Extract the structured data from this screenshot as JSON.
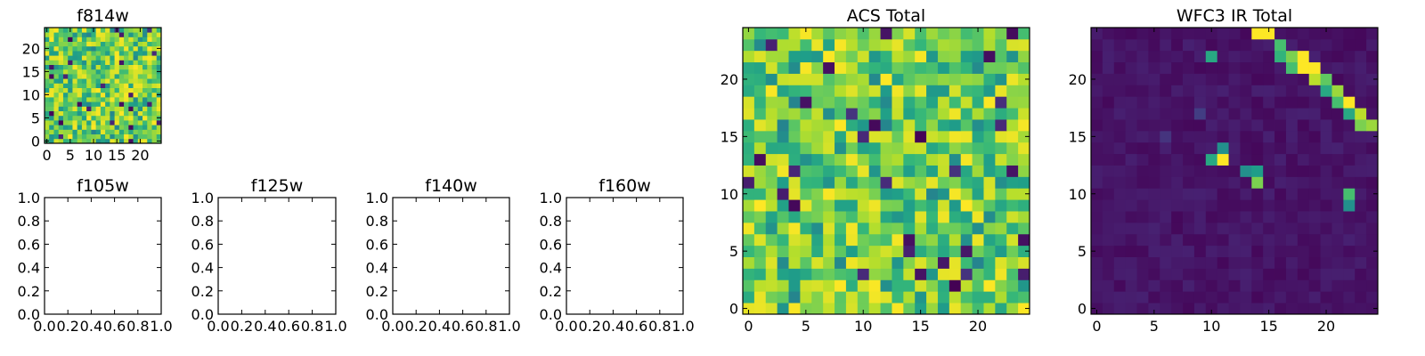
{
  "chart_data": [
    {
      "type": "heatmap",
      "title": "f814w",
      "xticks": [
        "0",
        "5",
        "10",
        "15",
        "20"
      ],
      "yticks": [
        "0",
        "5",
        "10",
        "15",
        "20"
      ],
      "grid_size": 25,
      "colormap": "viridis",
      "seed": 11,
      "pattern": "noise",
      "extent": [
        -0.5,
        24.5,
        -0.5,
        24.5
      ]
    },
    {
      "type": "heatmap",
      "title": "f105w",
      "empty": true,
      "xticks": [
        "0.0",
        "0.2",
        "0.4",
        "0.6",
        "0.8",
        "1.0"
      ],
      "yticks": [
        "0.0",
        "0.2",
        "0.4",
        "0.6",
        "0.8",
        "1.0"
      ],
      "xlim": [
        0,
        1
      ],
      "ylim": [
        0,
        1
      ]
    },
    {
      "type": "heatmap",
      "title": "f125w",
      "empty": true,
      "xticks": [
        "0.0",
        "0.2",
        "0.4",
        "0.6",
        "0.8",
        "1.0"
      ],
      "yticks": [
        "0.0",
        "0.2",
        "0.4",
        "0.6",
        "0.8",
        "1.0"
      ],
      "xlim": [
        0,
        1
      ],
      "ylim": [
        0,
        1
      ]
    },
    {
      "type": "heatmap",
      "title": "f140w",
      "empty": true,
      "xticks": [
        "0.0",
        "0.2",
        "0.4",
        "0.6",
        "0.8",
        "1.0"
      ],
      "yticks": [
        "0.0",
        "0.2",
        "0.4",
        "0.6",
        "0.8",
        "1.0"
      ],
      "xlim": [
        0,
        1
      ],
      "ylim": [
        0,
        1
      ]
    },
    {
      "type": "heatmap",
      "title": "f160w",
      "empty": true,
      "xticks": [
        "0.0",
        "0.2",
        "0.4",
        "0.6",
        "0.8",
        "1.0"
      ],
      "yticks": [
        "0.0",
        "0.2",
        "0.4",
        "0.6",
        "0.8",
        "1.0"
      ],
      "xlim": [
        0,
        1
      ],
      "ylim": [
        0,
        1
      ]
    },
    {
      "type": "heatmap",
      "title": "ACS Total",
      "xticks": [
        "0",
        "5",
        "10",
        "15",
        "20"
      ],
      "yticks": [
        "0",
        "5",
        "10",
        "15",
        "20"
      ],
      "grid_size": 25,
      "colormap": "viridis",
      "seed": 7,
      "pattern": "noise",
      "extent": [
        -0.5,
        24.5,
        -0.5,
        24.5
      ]
    },
    {
      "type": "heatmap",
      "title": "WFC3 IR Total",
      "xticks": [
        "0",
        "5",
        "10",
        "15",
        "20"
      ],
      "yticks": [
        "0",
        "5",
        "10",
        "15",
        "20"
      ],
      "grid_size": 25,
      "colormap": "viridis",
      "seed": 3,
      "pattern": "diagonal-streak",
      "extent": [
        -0.5,
        24.5,
        -0.5,
        24.5
      ]
    }
  ]
}
